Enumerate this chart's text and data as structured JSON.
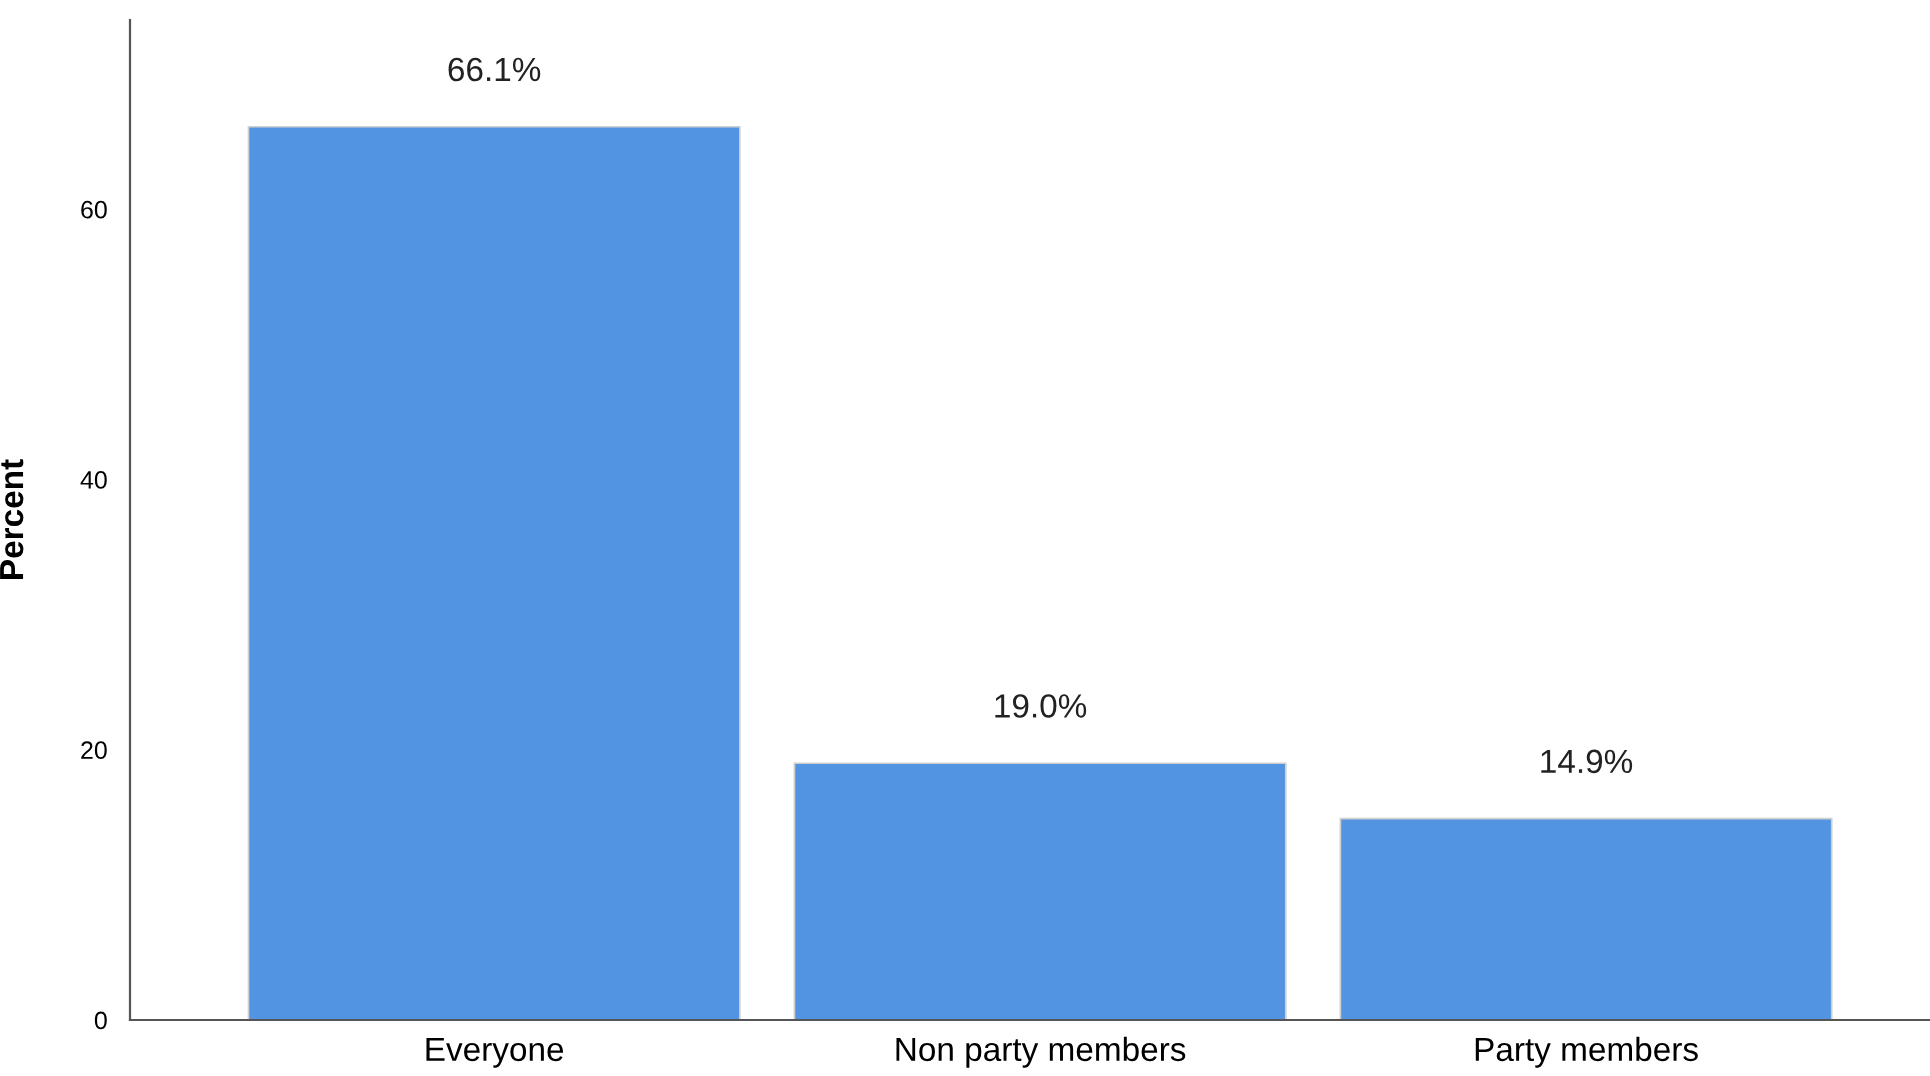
{
  "chart_data": {
    "type": "bar",
    "ylabel": "Percent",
    "categories": [
      "Everyone",
      "Non party members",
      "Party members"
    ],
    "values": [
      66.1,
      19.0,
      14.9
    ],
    "value_labels": [
      "66.1%",
      "19.0%",
      "14.9%"
    ],
    "color": "#5294e2",
    "ylim": [
      0,
      74
    ],
    "yticks": [
      0,
      20,
      40,
      60
    ],
    "grid": false,
    "legend": false
  }
}
